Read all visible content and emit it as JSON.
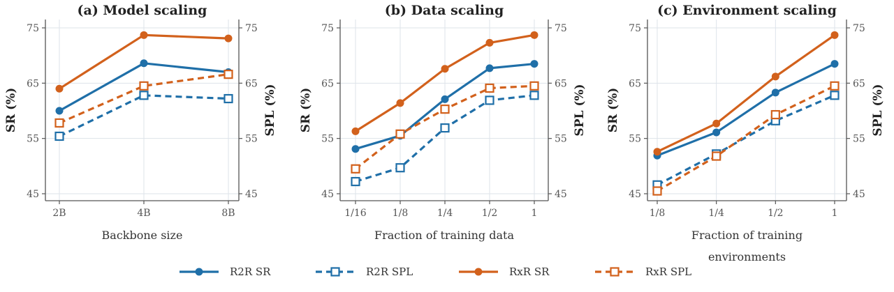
{
  "colors": {
    "r2r": "#1f6fa8",
    "rxr": "#d2611c"
  },
  "legend": [
    {
      "label": "R2R SR",
      "color": "#1f6fa8",
      "dashed": false,
      "marker": "circle"
    },
    {
      "label": "R2R SPL",
      "color": "#1f6fa8",
      "dashed": true,
      "marker": "square"
    },
    {
      "label": "RxR SR",
      "color": "#d2611c",
      "dashed": false,
      "marker": "circle"
    },
    {
      "label": "RxR SPL",
      "color": "#d2611c",
      "dashed": true,
      "marker": "square"
    }
  ],
  "chart_data": [
    {
      "type": "line",
      "title": "(a) Model scaling",
      "xlabel": [
        "Backbone size"
      ],
      "ylabel": "SR (%)",
      "y2label": "SPL (%)",
      "categories": [
        "2B",
        "4B",
        "8B"
      ],
      "ylim": [
        44,
        75
      ],
      "yticks": [
        45,
        55,
        65,
        75
      ],
      "series": [
        {
          "name": "R2R SR",
          "values": [
            60.0,
            68.6,
            67.0
          ]
        },
        {
          "name": "R2R SPL",
          "values": [
            55.4,
            62.8,
            62.2
          ]
        },
        {
          "name": "RxR SR",
          "values": [
            64.0,
            73.7,
            73.1
          ]
        },
        {
          "name": "RxR SPL",
          "values": [
            57.8,
            64.5,
            66.6
          ]
        }
      ]
    },
    {
      "type": "line",
      "title": "(b) Data scaling",
      "xlabel": [
        "Fraction of training data"
      ],
      "ylabel": "SR (%)",
      "y2label": "SPL (%)",
      "categories": [
        "1/16",
        "1/8",
        "1/4",
        "1/2",
        "1"
      ],
      "ylim": [
        44,
        75
      ],
      "yticks": [
        45,
        55,
        65,
        75
      ],
      "series": [
        {
          "name": "R2R SR",
          "values": [
            53.1,
            55.5,
            62.1,
            67.7,
            68.5
          ]
        },
        {
          "name": "R2R SPL",
          "values": [
            47.2,
            49.7,
            56.9,
            61.9,
            62.8
          ]
        },
        {
          "name": "RxR SR",
          "values": [
            56.3,
            61.4,
            67.6,
            72.3,
            73.7
          ]
        },
        {
          "name": "RxR SPL",
          "values": [
            49.5,
            55.8,
            60.3,
            64.1,
            64.5
          ]
        }
      ]
    },
    {
      "type": "line",
      "title": "(c) Environment scaling",
      "xlabel": [
        "Fraction of training",
        "environments"
      ],
      "ylabel": "SR (%)",
      "y2label": "SPL (%)",
      "categories": [
        "1/8",
        "1/4",
        "1/2",
        "1"
      ],
      "ylim": [
        44,
        75
      ],
      "yticks": [
        45,
        55,
        65,
        75
      ],
      "series": [
        {
          "name": "R2R SR",
          "values": [
            51.9,
            56.1,
            63.3,
            68.5
          ]
        },
        {
          "name": "R2R SPL",
          "values": [
            46.6,
            52.2,
            58.2,
            62.8
          ]
        },
        {
          "name": "RxR SR",
          "values": [
            52.6,
            57.7,
            66.2,
            73.7
          ]
        },
        {
          "name": "RxR SPL",
          "values": [
            45.5,
            51.8,
            59.3,
            64.5
          ]
        }
      ]
    }
  ]
}
